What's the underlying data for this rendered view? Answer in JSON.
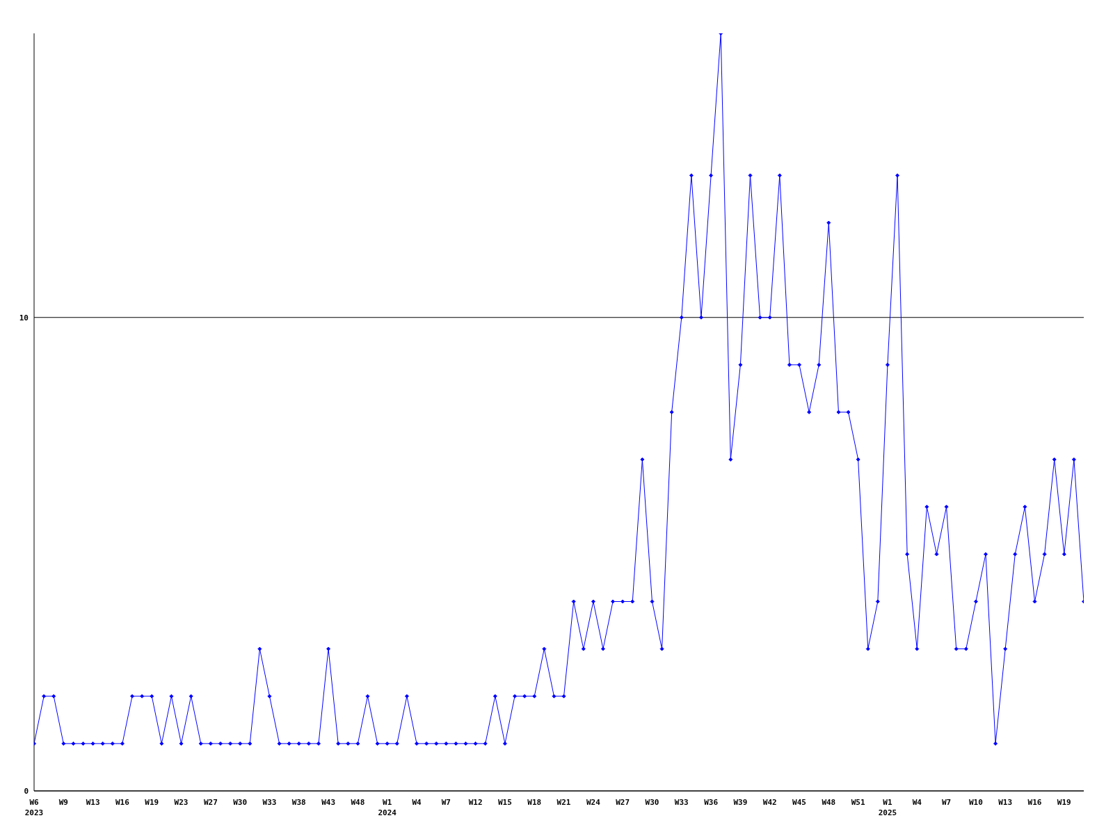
{
  "chart_data": {
    "type": "line",
    "categories": [
      "W6\n2023",
      null,
      null,
      "W9",
      null,
      null,
      "W13",
      null,
      null,
      "W16",
      null,
      null,
      "W19",
      null,
      null,
      "W23",
      null,
      null,
      "W27",
      null,
      null,
      "W30",
      null,
      null,
      "W33",
      null,
      null,
      "W38",
      null,
      null,
      "W43",
      null,
      null,
      "W48",
      null,
      null,
      "W1\n2024",
      null,
      null,
      "W4",
      null,
      null,
      "W7",
      null,
      null,
      "W12",
      null,
      null,
      "W15",
      null,
      null,
      "W18",
      null,
      null,
      "W21",
      null,
      null,
      "W24",
      null,
      null,
      "W27",
      null,
      null,
      "W30",
      null,
      null,
      "W33",
      null,
      null,
      "W36",
      null,
      null,
      "W39",
      null,
      null,
      "W42",
      null,
      null,
      "W45",
      null,
      null,
      "W48",
      null,
      null,
      "W51",
      null,
      null,
      "W1\n2025",
      null,
      null,
      "W4",
      null,
      null,
      "W7",
      null,
      null,
      "W10",
      null,
      null,
      "W13",
      null,
      null,
      "W16",
      null,
      null,
      "W19",
      null,
      null
    ],
    "series": [
      {
        "color": "#0000ff",
        "values": [
          1,
          2,
          2,
          1,
          1,
          1,
          1,
          1,
          1,
          1,
          2,
          2,
          2,
          1,
          2,
          1,
          2,
          1,
          1,
          1,
          1,
          1,
          1,
          3,
          2,
          1,
          1,
          1,
          1,
          1,
          3,
          1,
          1,
          1,
          2,
          1,
          1,
          1,
          2,
          1,
          1,
          1,
          1,
          1,
          1,
          1,
          1,
          2,
          1,
          2,
          2,
          2,
          3,
          2,
          2,
          4,
          3,
          4,
          3,
          4,
          4,
          4,
          7,
          4,
          3,
          8,
          10,
          13,
          10,
          13,
          16,
          7,
          9,
          13,
          10,
          10,
          13,
          9,
          9,
          8,
          9,
          12,
          8,
          8,
          7,
          3,
          4,
          9,
          13,
          5,
          3,
          6,
          5,
          6,
          3,
          3,
          4,
          5,
          1,
          3,
          5,
          6,
          4,
          5,
          7,
          5,
          7,
          4
        ]
      }
    ],
    "ylim": [
      0,
      16
    ],
    "yticks": [
      0,
      10
    ],
    "grid": "y",
    "marker": "diamond",
    "line_style": "solid"
  }
}
